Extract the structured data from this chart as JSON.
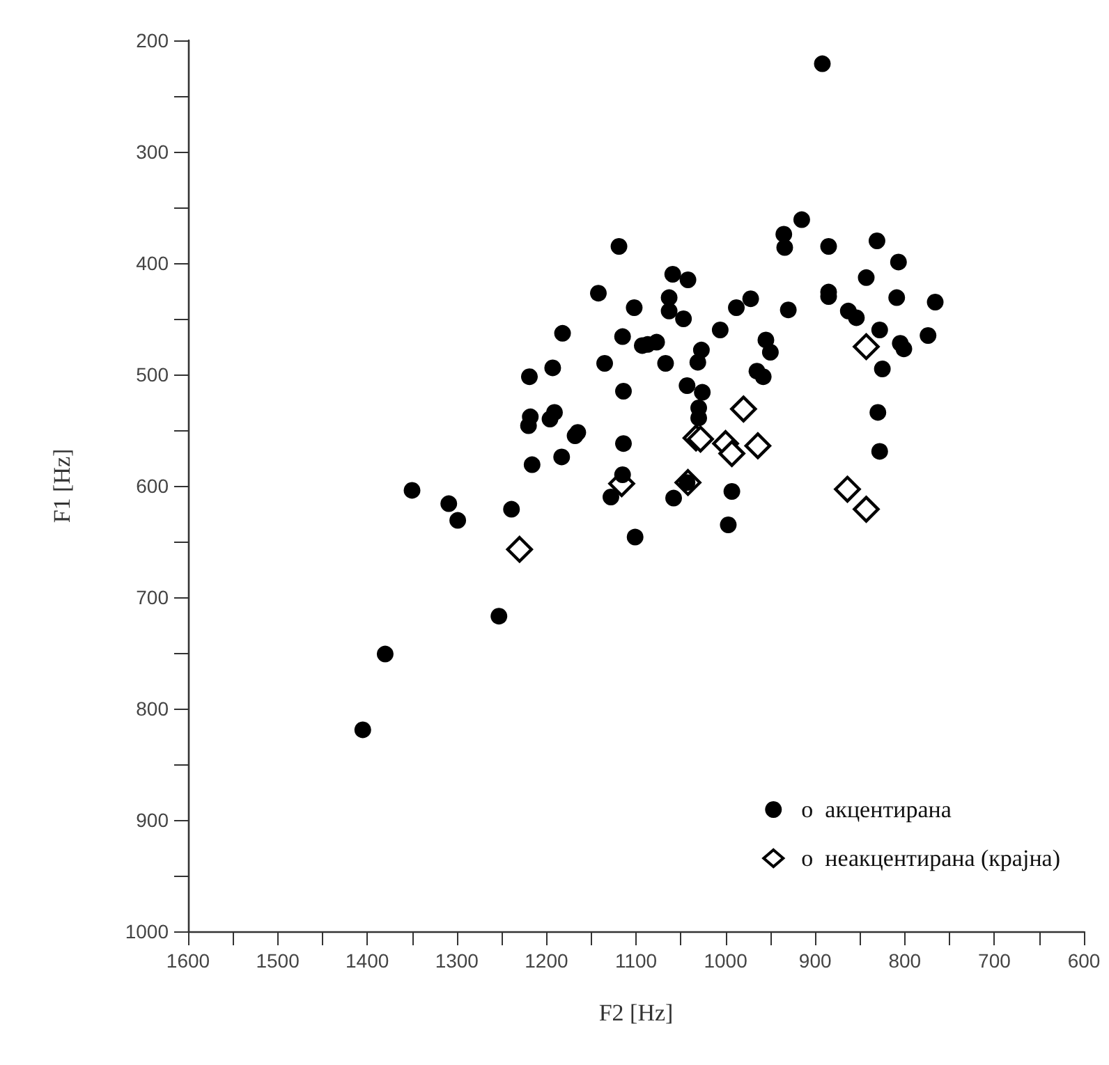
{
  "chart_data": {
    "type": "scatter",
    "xlabel": "F2 [Hz]",
    "ylabel": "F1 [Hz]",
    "xlim": [
      1600,
      600
    ],
    "ylim": [
      1000,
      200
    ],
    "xticks": [
      1600,
      {
        "value": 1550,
        "label": null
      },
      1500,
      {
        "value": 1450,
        "label": null
      },
      1400,
      {
        "value": 1350,
        "label": null
      },
      1300,
      {
        "value": 1250,
        "label": null
      },
      1200,
      {
        "value": 1150,
        "label": null
      },
      1100,
      {
        "value": 1050,
        "label": null
      },
      1000,
      {
        "value": 950,
        "label": null
      },
      900,
      {
        "value": 850,
        "label": null
      },
      800,
      {
        "value": 750,
        "label": null
      },
      700,
      {
        "value": 650,
        "label": null
      },
      600
    ],
    "yticks": [
      1000,
      {
        "value": 950,
        "label": null
      },
      900,
      {
        "value": 850,
        "label": null
      },
      800,
      {
        "value": 750,
        "label": null
      },
      700,
      {
        "value": 650,
        "label": null
      },
      600,
      {
        "value": 550,
        "label": null
      },
      500,
      {
        "value": 450,
        "label": null
      },
      400,
      {
        "value": 350,
        "label": null
      },
      300,
      {
        "value": 250,
        "label": null
      },
      200
    ],
    "grid": false,
    "legend": "bottom right",
    "series": [
      {
        "name": "о  акцентирана",
        "color": "#000000",
        "marker": "circle",
        "x": [
          892,
          1119,
          1142,
          1102,
          1182,
          1115,
          1093,
          1193,
          1135,
          1219,
          1114,
          1218,
          1220,
          1191,
          1196,
          1165,
          1168,
          1114,
          1183,
          1216,
          1115,
          1128,
          1350,
          1309,
          1299,
          1239,
          1101,
          1253,
          1380,
          1405,
          915,
          935,
          934,
          885,
          831,
          807,
          1059,
          1042,
          843,
          1063,
          1063,
          1047,
          988,
          972,
          930,
          885,
          885,
          863,
          854,
          809,
          766,
          1087,
          1077,
          1067,
          1006,
          1027,
          1031,
          955,
          950,
          828,
          805,
          801,
          774,
          825,
          965,
          958,
          1043,
          1026,
          1030,
          1030,
          830,
          828,
          1058,
          1043,
          993,
          997
        ],
        "values": [
          221,
          385,
          427,
          440,
          463,
          466,
          474,
          494,
          490,
          502,
          515,
          538,
          546,
          534,
          540,
          552,
          555,
          562,
          574,
          581,
          590,
          610,
          604,
          616,
          631,
          621,
          646,
          717,
          751,
          819,
          361,
          374,
          386,
          385,
          380,
          399,
          410,
          415,
          413,
          431,
          443,
          450,
          440,
          432,
          442,
          426,
          430,
          443,
          449,
          431,
          435,
          473,
          471,
          490,
          460,
          478,
          489,
          469,
          480,
          460,
          472,
          477,
          465,
          495,
          497,
          502,
          510,
          516,
          530,
          539,
          534,
          569,
          611,
          597,
          605,
          635
        ]
      },
      {
        "name": "о  неакцентирана (крајна)",
        "color": "#000000",
        "marker": "diamond",
        "x": [
          1116,
          1230,
          843,
          980,
          1033,
          1028,
          1000,
          993,
          964,
          1042,
          864,
          843
        ],
        "values": [
          598,
          657,
          475,
          531,
          557,
          558,
          562,
          571,
          564,
          597,
          603,
          621
        ]
      }
    ]
  }
}
